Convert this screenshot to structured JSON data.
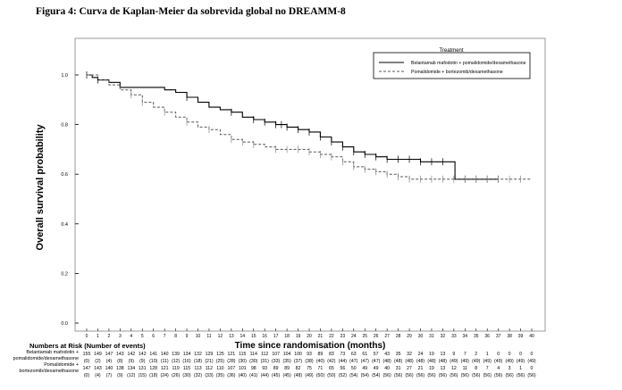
{
  "figure_title": "Figura 4: Curva de Kaplan-Meier da sobrevida global no DREAMM-8",
  "chart_data": {
    "type": "line",
    "title": "",
    "xlabel": "Time since randomisation (months)",
    "ylabel": "Overall survival probability",
    "xlim": [
      -2,
      41
    ],
    "ylim": [
      0,
      1.08
    ],
    "xticks": [
      0,
      1,
      2,
      3,
      4,
      5,
      6,
      7,
      8,
      9,
      10,
      11,
      12,
      13,
      14,
      15,
      16,
      17,
      18,
      19,
      20,
      21,
      22,
      23,
      24,
      25,
      26,
      27,
      28,
      29,
      30,
      31,
      32,
      33,
      34,
      35,
      36,
      37,
      38,
      39,
      40
    ],
    "yticks": [
      "0.0",
      "0.2",
      "0.4",
      "0.6",
      "0.8",
      "1.0"
    ],
    "grid": false,
    "legend": {
      "title": "Treatment",
      "position": "top-right",
      "entries": [
        {
          "label": "Belantamab mafodotin + pomalidomide/dexamethasone",
          "style": "solid"
        },
        {
          "label": "Pomalidomide + bortezomib/dexamethasone",
          "style": "dashed"
        }
      ]
    },
    "series": [
      {
        "name": "Belantamab mafodotin + pomalidomide/dexamethasone",
        "style": "solid",
        "color": "#000000",
        "points": [
          [
            0,
            1.0
          ],
          [
            0.5,
            0.99
          ],
          [
            1,
            0.98
          ],
          [
            2,
            0.97
          ],
          [
            3,
            0.95
          ],
          [
            6,
            0.95
          ],
          [
            7,
            0.94
          ],
          [
            8,
            0.93
          ],
          [
            9,
            0.91
          ],
          [
            10,
            0.89
          ],
          [
            11,
            0.87
          ],
          [
            12,
            0.86
          ],
          [
            13,
            0.85
          ],
          [
            14,
            0.83
          ],
          [
            15,
            0.82
          ],
          [
            16,
            0.81
          ],
          [
            17,
            0.8
          ],
          [
            18,
            0.79
          ],
          [
            19,
            0.78
          ],
          [
            20,
            0.77
          ],
          [
            21,
            0.75
          ],
          [
            22,
            0.73
          ],
          [
            23,
            0.71
          ],
          [
            24,
            0.69
          ],
          [
            25,
            0.68
          ],
          [
            26,
            0.67
          ],
          [
            27,
            0.66
          ],
          [
            29,
            0.66
          ],
          [
            30,
            0.65
          ],
          [
            33,
            0.65
          ],
          [
            33.1,
            0.58
          ],
          [
            37,
            0.58
          ]
        ],
        "censor_ticks": [
          0,
          1,
          9,
          13,
          15,
          16,
          17,
          17.5,
          18,
          19,
          20,
          21,
          22,
          23,
          24,
          25,
          26,
          27,
          28,
          29,
          30,
          31,
          32,
          34,
          35,
          36,
          37
        ]
      },
      {
        "name": "Pomalidomide + bortezomib/dexamethasone",
        "style": "dashed",
        "color": "#555555",
        "points": [
          [
            0,
            1.0
          ],
          [
            1,
            0.98
          ],
          [
            2,
            0.96
          ],
          [
            3,
            0.94
          ],
          [
            4,
            0.92
          ],
          [
            5,
            0.89
          ],
          [
            6,
            0.87
          ],
          [
            7,
            0.85
          ],
          [
            8,
            0.83
          ],
          [
            9,
            0.81
          ],
          [
            10,
            0.79
          ],
          [
            11,
            0.78
          ],
          [
            12,
            0.76
          ],
          [
            13,
            0.74
          ],
          [
            14,
            0.73
          ],
          [
            15,
            0.72
          ],
          [
            16,
            0.71
          ],
          [
            17,
            0.7
          ],
          [
            19,
            0.7
          ],
          [
            20,
            0.69
          ],
          [
            21,
            0.68
          ],
          [
            22,
            0.67
          ],
          [
            23,
            0.65
          ],
          [
            24,
            0.63
          ],
          [
            25,
            0.62
          ],
          [
            26,
            0.61
          ],
          [
            27,
            0.6
          ],
          [
            28,
            0.59
          ],
          [
            29,
            0.58
          ],
          [
            30,
            0.58
          ],
          [
            40,
            0.58
          ]
        ],
        "censor_ticks": [
          4,
          5,
          7,
          9,
          11,
          13,
          14,
          15,
          17,
          18,
          19,
          20,
          21,
          22,
          23,
          24,
          25,
          26,
          27,
          28,
          29,
          30,
          31,
          32,
          33,
          34,
          35,
          36,
          37,
          38,
          39
        ]
      }
    ]
  },
  "risk_table": {
    "title": "Numbers at Risk (Number of events)",
    "rows": [
      {
        "labels": [
          "Belantamab mafodotin +",
          "pomalidomide/dexamethasone"
        ],
        "at_risk": [
          "155",
          "149",
          "147",
          "143",
          "142",
          "142",
          "141",
          "140",
          "139",
          "134",
          "132",
          "129",
          "125",
          "121",
          "115",
          "114",
          "112",
          "107",
          "104",
          "100",
          "93",
          "89",
          "83",
          "73",
          "63",
          "61",
          "57",
          "43",
          "35",
          "32",
          "24",
          "19",
          "13",
          "9",
          "7",
          "2",
          "1",
          "0",
          "0",
          "0",
          "0"
        ],
        "events": [
          "(0)",
          "(2)",
          "(4)",
          "(8)",
          "(9)",
          "(9)",
          "(10)",
          "(11)",
          "(12)",
          "(16)",
          "(18)",
          "(21)",
          "(25)",
          "(28)",
          "(30)",
          "(30)",
          "(31)",
          "(33)",
          "(35)",
          "(37)",
          "(38)",
          "(40)",
          "(42)",
          "(44)",
          "(47)",
          "(47)",
          "(47)",
          "(48)",
          "(48)",
          "(48)",
          "(48)",
          "(48)",
          "(48)",
          "(49)",
          "(49)",
          "(49)",
          "(49)",
          "(49)",
          "(49)",
          "(49)",
          "(49)"
        ]
      },
      {
        "labels": [
          "Pomalidomide +",
          "bortezomib/dexamethasone"
        ],
        "at_risk": [
          "147",
          "143",
          "140",
          "138",
          "134",
          "131",
          "128",
          "121",
          "119",
          "115",
          "113",
          "112",
          "110",
          "107",
          "101",
          "98",
          "93",
          "89",
          "89",
          "82",
          "75",
          "71",
          "65",
          "56",
          "50",
          "49",
          "49",
          "40",
          "31",
          "27",
          "21",
          "19",
          "13",
          "12",
          "11",
          "8",
          "7",
          "4",
          "3",
          "1",
          "0"
        ],
        "events": [
          "(0)",
          "(4)",
          "(7)",
          "(9)",
          "(12)",
          "(15)",
          "(18)",
          "(24)",
          "(26)",
          "(30)",
          "(32)",
          "(33)",
          "(35)",
          "(36)",
          "(40)",
          "(41)",
          "(44)",
          "(45)",
          "(45)",
          "(48)",
          "(49)",
          "(50)",
          "(50)",
          "(52)",
          "(54)",
          "(54)",
          "(54)",
          "(56)",
          "(56)",
          "(56)",
          "(56)",
          "(56)",
          "(56)",
          "(56)",
          "(56)",
          "(56)",
          "(56)",
          "(56)",
          "(56)",
          "(56)",
          "(56)"
        ]
      }
    ]
  }
}
